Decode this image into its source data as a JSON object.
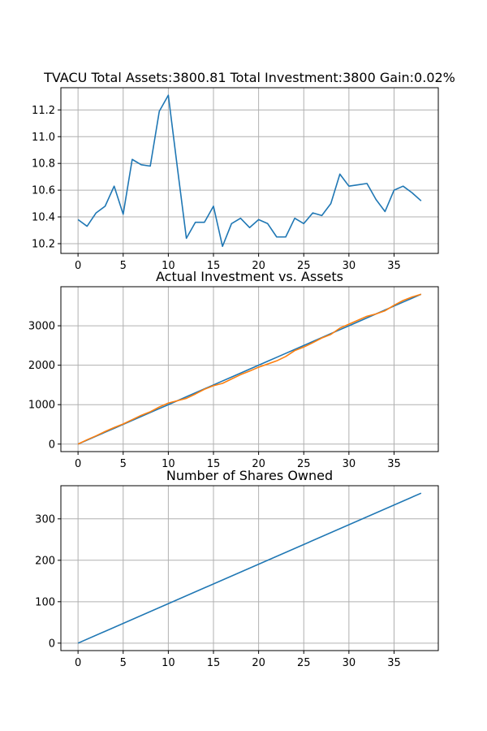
{
  "figure": {
    "background": "#ffffff",
    "grid_color": "#b0b0b0"
  },
  "chart_data": [
    {
      "type": "line",
      "title": "TVACU Total Assets:3800.81  Total Investment:3800  Gain:0.02%",
      "xlabel": "",
      "ylabel": "",
      "xlim": [
        -1.9,
        39.9
      ],
      "ylim": [
        10.127,
        11.366
      ],
      "x_ticks": [
        0,
        5,
        10,
        15,
        20,
        25,
        30,
        35
      ],
      "y_ticks": [
        10.2,
        10.4,
        10.6,
        10.8,
        11.0,
        11.2
      ],
      "y_tick_labels": [
        "10.2",
        "10.4",
        "10.6",
        "10.8",
        "11.0",
        "11.2"
      ],
      "grid": true,
      "series": [
        {
          "color": "#1f77b4",
          "x": [
            0,
            1,
            2,
            3,
            4,
            5,
            6,
            7,
            8,
            9,
            10,
            11,
            12,
            13,
            14,
            15,
            16,
            17,
            18,
            19,
            20,
            21,
            22,
            23,
            24,
            25,
            26,
            27,
            28,
            29,
            30,
            31,
            32,
            33,
            34,
            35,
            36,
            37,
            38
          ],
          "y": [
            10.38,
            10.33,
            10.43,
            10.48,
            10.63,
            10.42,
            10.83,
            10.79,
            10.78,
            11.19,
            11.31,
            10.77,
            10.24,
            10.36,
            10.36,
            10.48,
            10.18,
            10.35,
            10.39,
            10.32,
            10.38,
            10.35,
            10.25,
            10.25,
            10.39,
            10.35,
            10.43,
            10.41,
            10.5,
            10.72,
            10.63,
            10.64,
            10.65,
            10.53,
            10.44,
            10.6,
            10.63,
            10.58,
            10.52
          ]
        }
      ]
    },
    {
      "type": "line",
      "title": "Actual Investment vs. Assets",
      "xlabel": "",
      "ylabel": "",
      "xlim": [
        -1.9,
        39.9
      ],
      "ylim": [
        -190,
        3990
      ],
      "x_ticks": [
        0,
        5,
        10,
        15,
        20,
        25,
        30,
        35
      ],
      "y_ticks": [
        0,
        1000,
        2000,
        3000
      ],
      "y_tick_labels": [
        "0",
        "1000",
        "2000",
        "3000"
      ],
      "grid": true,
      "series": [
        {
          "color": "#1f77b4",
          "x": [
            0,
            1,
            2,
            3,
            4,
            5,
            6,
            7,
            8,
            9,
            10,
            11,
            12,
            13,
            14,
            15,
            16,
            17,
            18,
            19,
            20,
            21,
            22,
            23,
            24,
            25,
            26,
            27,
            28,
            29,
            30,
            31,
            32,
            33,
            34,
            35,
            36,
            37,
            38
          ],
          "y": [
            0,
            100,
            200,
            300,
            400,
            500,
            600,
            700,
            800,
            900,
            1000,
            1100,
            1200,
            1300,
            1400,
            1500,
            1600,
            1700,
            1800,
            1900,
            2000,
            2100,
            2200,
            2300,
            2400,
            2500,
            2600,
            2700,
            2800,
            2900,
            3000,
            3100,
            3200,
            3300,
            3400,
            3500,
            3600,
            3700,
            3800
          ]
        },
        {
          "color": "#ff7f0e",
          "x": [
            0,
            1,
            2,
            3,
            4,
            5,
            6,
            7,
            8,
            9,
            10,
            11,
            12,
            13,
            14,
            15,
            16,
            17,
            18,
            19,
            20,
            21,
            22,
            23,
            24,
            25,
            26,
            27,
            28,
            29,
            30,
            31,
            32,
            33,
            34,
            35,
            36,
            37,
            38
          ],
          "y": [
            0,
            110,
            210,
            320,
            420,
            510,
            620,
            730,
            820,
            940,
            1040,
            1100,
            1160,
            1270,
            1390,
            1480,
            1540,
            1650,
            1760,
            1850,
            1950,
            2030,
            2110,
            2220,
            2370,
            2460,
            2570,
            2690,
            2780,
            2940,
            3040,
            3140,
            3240,
            3300,
            3380,
            3520,
            3640,
            3730,
            3800
          ]
        }
      ]
    },
    {
      "type": "line",
      "title": "Number of Shares Owned",
      "xlabel": "",
      "ylabel": "",
      "xlim": [
        -1.9,
        39.9
      ],
      "ylim": [
        -18,
        380
      ],
      "x_ticks": [
        0,
        5,
        10,
        15,
        20,
        25,
        30,
        35
      ],
      "y_ticks": [
        0,
        100,
        200,
        300
      ],
      "y_tick_labels": [
        "0",
        "100",
        "200",
        "300"
      ],
      "grid": true,
      "series": [
        {
          "color": "#1f77b4",
          "x": [
            0,
            38
          ],
          "y": [
            0,
            362
          ]
        }
      ]
    }
  ]
}
